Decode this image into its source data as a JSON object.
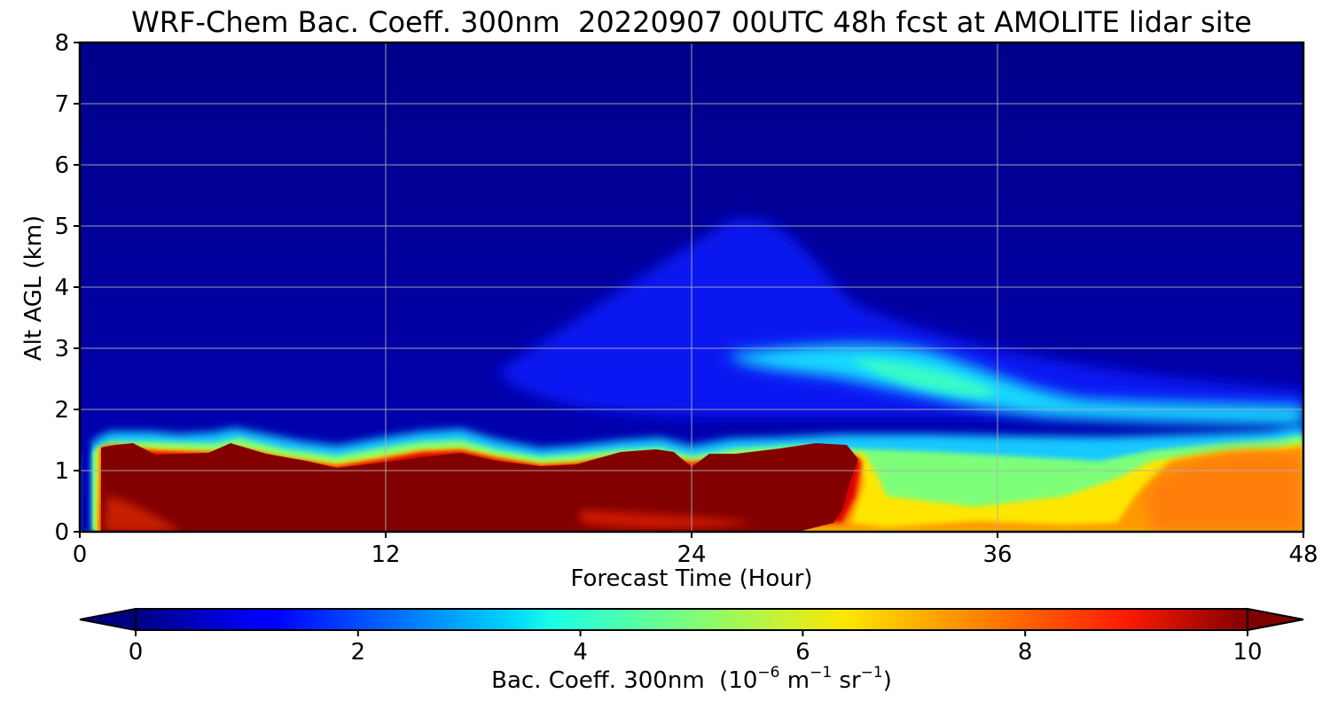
{
  "chart_data": {
    "type": "heatmap",
    "title": "WRF-Chem Bac. Coeff. 300nm  20220907 00UTC 48h fcst at AMOLITE lidar site",
    "xlabel": "Forecast Time (Hour)",
    "ylabel": "Alt AGL (km)",
    "xlim": [
      0,
      48
    ],
    "ylim": [
      0,
      8
    ],
    "x_ticks": [
      "0",
      "12",
      "24",
      "36",
      "48"
    ],
    "y_ticks": [
      "0",
      "1",
      "2",
      "3",
      "4",
      "5",
      "6",
      "7",
      "8"
    ],
    "grid": true,
    "colormap": "jet",
    "colorbar": {
      "orientation": "horizontal",
      "position": "bottom",
      "range": [
        0,
        10
      ],
      "extend": "both",
      "ticks": [
        "0",
        "2",
        "4",
        "6",
        "8",
        "10"
      ],
      "label_parts": {
        "main": "Bac. Coeff. 300nm  (10",
        "exp1": "−6",
        "mid": " m",
        "exp2": "−1",
        "mid2": " sr",
        "exp3": "−1",
        "end": ")"
      }
    },
    "x": [
      0,
      0.5,
      0.8,
      1,
      2,
      3,
      4,
      5,
      6,
      7,
      8,
      9,
      10,
      12,
      14,
      15,
      16,
      18,
      19,
      20,
      21,
      22,
      23,
      24,
      25,
      26,
      27,
      28,
      29,
      30,
      31,
      32,
      34,
      36,
      38,
      40,
      42,
      44,
      46,
      47,
      48
    ],
    "boundary_layer_top_km": [
      0,
      0.5,
      1.5,
      1.6,
      1.65,
      1.6,
      1.6,
      1.62,
      1.7,
      1.6,
      1.5,
      1.4,
      1.45,
      1.55,
      1.65,
      1.7,
      1.6,
      1.45,
      1.4,
      1.5,
      1.55,
      1.55,
      1.5,
      1.45,
      1.5,
      1.55,
      1.55,
      1.55,
      1.55,
      1.55,
      1.55,
      1.55,
      1.55,
      1.55,
      1.55,
      1.5,
      1.5,
      1.55,
      1.6,
      1.65,
      1.7
    ],
    "max_value_layer_top_km": [
      0,
      0,
      1.4,
      1.42,
      1.45,
      1.3,
      1.3,
      1.3,
      1.42,
      1.3,
      1.1,
      1.0,
      1.0,
      1.05,
      1.2,
      1.3,
      1.15,
      1.15,
      1.05,
      1.2,
      1.35,
      1.4,
      1.3,
      1.05,
      1.3,
      1.35,
      1.4,
      1.45,
      1.45,
      1.4,
      0,
      0,
      0,
      0,
      0,
      0,
      0,
      0,
      0,
      0,
      0
    ],
    "elevated_layer": {
      "description_values": "aerosol plume descending from ~3.2 km at hour 27 to ~2.1 km at hour 36, persisting near 2 km until hour 48",
      "center_km": [
        [
          26,
          3.3
        ],
        [
          30,
          3.0
        ],
        [
          33,
          2.7
        ],
        [
          36,
          2.25
        ],
        [
          40,
          2.1
        ],
        [
          44,
          2.05
        ],
        [
          48,
          2.0
        ]
      ],
      "peak_value": 4.2
    }
  }
}
